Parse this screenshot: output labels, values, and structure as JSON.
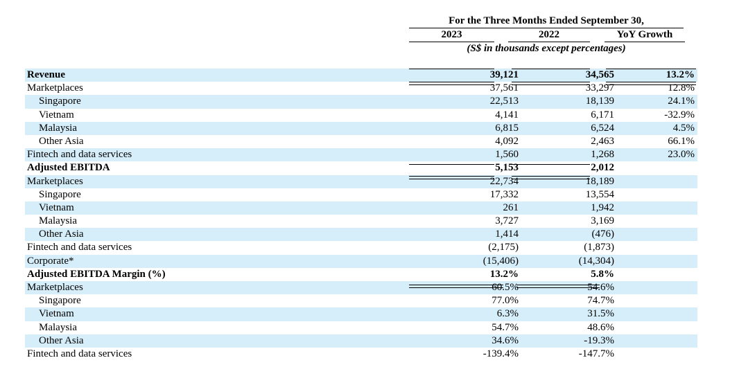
{
  "header": {
    "period_title": "For the Three Months Ended September 30,",
    "col_2023": "2023",
    "col_2022": "2022",
    "col_yoy": "YoY Growth",
    "units_note": "(S$ in thousands except percentages)"
  },
  "rows": [
    {
      "label": "Revenue",
      "v2023": "39,121",
      "v2022": "34,565",
      "yoy": "13.2%"
    },
    {
      "label": "Marketplaces",
      "v2023": "37,561",
      "v2022": "33,297",
      "yoy": "12.8%"
    },
    {
      "label": "Singapore",
      "v2023": "22,513",
      "v2022": "18,139",
      "yoy": "24.1%"
    },
    {
      "label": "Vietnam",
      "v2023": "4,141",
      "v2022": "6,171",
      "yoy": "-32.9%"
    },
    {
      "label": "Malaysia",
      "v2023": "6,815",
      "v2022": "6,524",
      "yoy": "4.5%"
    },
    {
      "label": "Other Asia",
      "v2023": "4,092",
      "v2022": "2,463",
      "yoy": "66.1%"
    },
    {
      "label": "Fintech and data services",
      "v2023": "1,560",
      "v2022": "1,268",
      "yoy": "23.0%"
    },
    {
      "label": "Adjusted EBITDA",
      "v2023": "5,153",
      "v2022": "2,012",
      "yoy": ""
    },
    {
      "label": "Marketplaces",
      "v2023": "22,734",
      "v2022": "18,189",
      "yoy": ""
    },
    {
      "label": "Singapore",
      "v2023": "17,332",
      "v2022": "13,554",
      "yoy": ""
    },
    {
      "label": "Vietnam",
      "v2023": "261",
      "v2022": "1,942",
      "yoy": ""
    },
    {
      "label": "Malaysia",
      "v2023": "3,727",
      "v2022": "3,169",
      "yoy": ""
    },
    {
      "label": "Other Asia",
      "v2023": "1,414",
      "v2022": "(476)",
      "yoy": ""
    },
    {
      "label": "Fintech and data services",
      "v2023": "(2,175)",
      "v2022": "(1,873)",
      "yoy": ""
    },
    {
      "label": "Corporate*",
      "v2023": "(15,406)",
      "v2022": "(14,304)",
      "yoy": ""
    },
    {
      "label": "Adjusted EBITDA Margin (%)",
      "v2023": "13.2%",
      "v2022": "5.8%",
      "yoy": ""
    },
    {
      "label": "Marketplaces",
      "v2023": "60.5%",
      "v2022": "54.6%",
      "yoy": ""
    },
    {
      "label": "Singapore",
      "v2023": "77.0%",
      "v2022": "74.7%",
      "yoy": ""
    },
    {
      "label": "Vietnam",
      "v2023": "6.3%",
      "v2022": "31.5%",
      "yoy": ""
    },
    {
      "label": "Malaysia",
      "v2023": "54.7%",
      "v2022": "48.6%",
      "yoy": ""
    },
    {
      "label": "Other Asia",
      "v2023": "34.6%",
      "v2022": "-19.3%",
      "yoy": ""
    },
    {
      "label": "Fintech and data services",
      "v2023": "-139.4%",
      "v2022": "-147.7%",
      "yoy": ""
    }
  ],
  "colors": {
    "shade": "#d6eefa",
    "text": "#000000"
  }
}
